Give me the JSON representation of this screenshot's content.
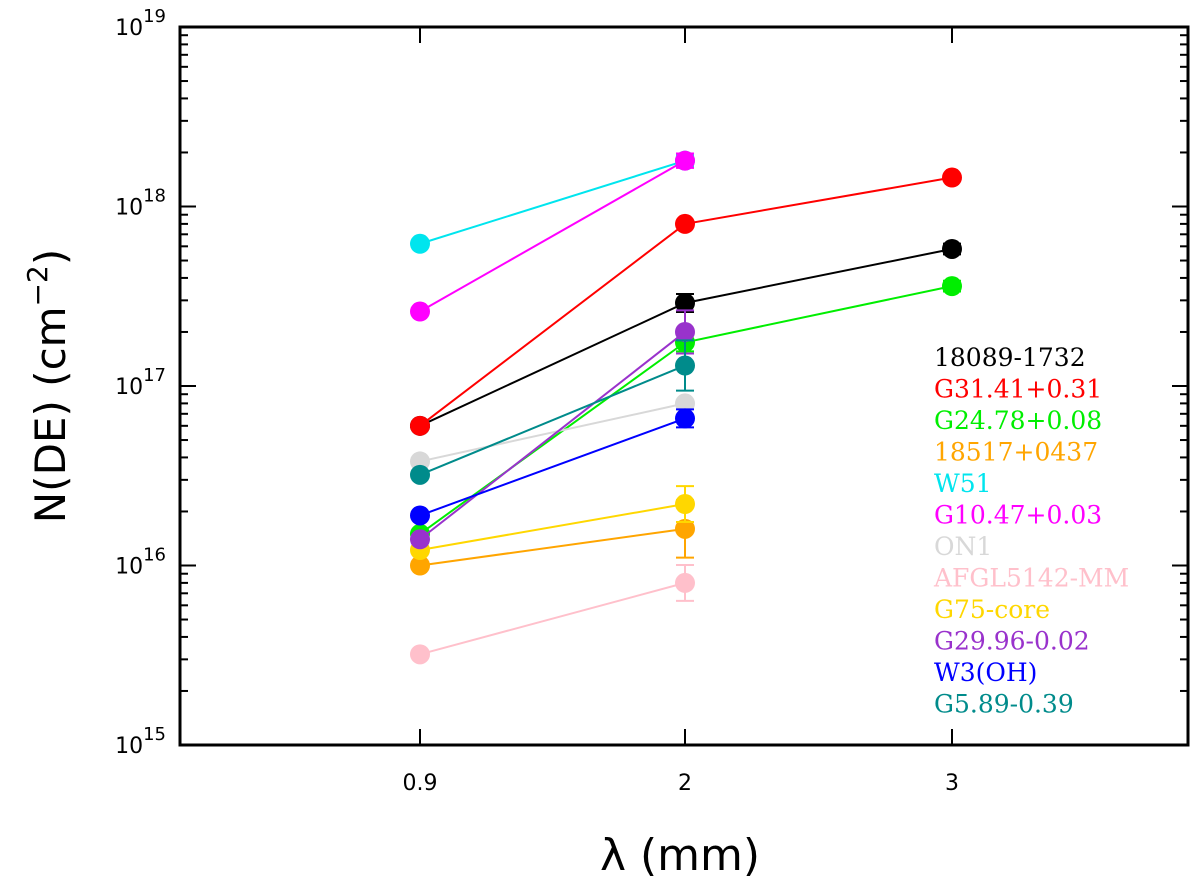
{
  "chart_data": {
    "type": "line",
    "scale_y": "log",
    "xlabel": "λ (mm)",
    "ylabel_main": "N(DE)  (cm",
    "ylabel_exp": "−2",
    "ylabel_close": ")",
    "ylim": [
      1000000000000000.0,
      1e+19
    ],
    "x_categories": [
      "0.9",
      "2",
      "3"
    ],
    "y_tick_labels": [
      {
        "base": "10",
        "exp": "15",
        "value": 1000000000000000.0
      },
      {
        "base": "10",
        "exp": "16",
        "value": 1e+16
      },
      {
        "base": "10",
        "exp": "17",
        "value": 1e+17
      },
      {
        "base": "10",
        "exp": "18",
        "value": 1e+18
      },
      {
        "base": "10",
        "exp": "19",
        "value": 1e+19
      }
    ],
    "legend_position": "right",
    "series": [
      {
        "name": "18089-1732",
        "color": "#000000",
        "x": [
          0,
          1,
          2
        ],
        "values": [
          6e+16,
          2.9e+17,
          5.8e+17
        ],
        "err": [
          0,
          0.05,
          0.03
        ]
      },
      {
        "name": "G31.41+0.31",
        "color": "#ff0000",
        "x": [
          0,
          1,
          2
        ],
        "values": [
          6e+16,
          8e+17,
          1.45e+18
        ],
        "err": [
          0,
          0,
          0
        ]
      },
      {
        "name": "G24.78+0.08",
        "color": "#00ee00",
        "x": [
          0,
          1,
          2
        ],
        "values": [
          1.5e+16,
          1.75e+17,
          3.6e+17
        ],
        "err": [
          0,
          0.05,
          0.03
        ]
      },
      {
        "name": "18517+0437",
        "color": "#ffa500",
        "x": [
          0,
          1
        ],
        "values": [
          1e+16,
          1.6e+16
        ],
        "err": [
          0,
          0.16
        ]
      },
      {
        "name": "W51",
        "color": "#00e5ee",
        "x": [
          0,
          1
        ],
        "values": [
          6.2e+17,
          1.8e+18
        ],
        "err": [
          0,
          0.03
        ]
      },
      {
        "name": "G10.47+0.03",
        "color": "#ff00ff",
        "x": [
          0,
          1
        ],
        "values": [
          2.6e+17,
          1.8e+18
        ],
        "err": [
          0,
          0.04
        ]
      },
      {
        "name": "ON1",
        "color": "#d8d8d8",
        "x": [
          0,
          1
        ],
        "values": [
          3.8e+16,
          8e+16
        ],
        "err": [
          0,
          0
        ]
      },
      {
        "name": "AFGL5142-MM",
        "color": "#ffc0cb",
        "x": [
          0,
          1
        ],
        "values": [
          3200000000000000.0,
          8000000000000000.0
        ],
        "err": [
          0,
          0.1
        ]
      },
      {
        "name": "G75-core",
        "color": "#ffd700",
        "x": [
          0,
          1
        ],
        "values": [
          1.22e+16,
          2.2e+16
        ],
        "err": [
          0,
          0.1
        ]
      },
      {
        "name": "G29.96-0.02",
        "color": "#9932cc",
        "x": [
          0,
          1
        ],
        "values": [
          1.4e+16,
          2e+17
        ],
        "err": [
          0,
          0.12
        ]
      },
      {
        "name": "W3(OH)",
        "color": "#0000ff",
        "x": [
          0,
          1
        ],
        "values": [
          1.9e+16,
          6.6e+16
        ],
        "err": [
          0,
          0.05
        ]
      },
      {
        "name": "G5.89-0.39",
        "color": "#008b8b",
        "x": [
          0,
          1
        ],
        "values": [
          3.2e+16,
          1.3e+17
        ],
        "err": [
          0,
          0.14
        ]
      }
    ]
  }
}
